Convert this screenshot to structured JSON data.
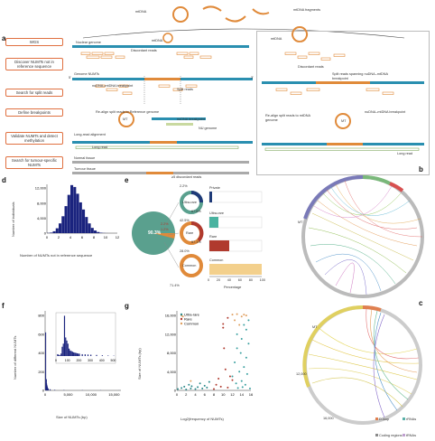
{
  "panels": {
    "a": "a",
    "b": "b",
    "c": "c",
    "d": "d",
    "e": "e",
    "f": "f",
    "g": "g"
  },
  "panel_a": {
    "top_labels": {
      "mtdna": "mtDNA",
      "mtdna_fragments": "mtDNA fragments",
      "mtdna_small": "mtDNA",
      "mtdna_right": "mtDNA"
    },
    "steps": [
      "WGS",
      "Discover NUMTs not in reference sequence",
      "Search for split reads",
      "Define breakpoints",
      "Validate NUMTs and detect methylation",
      "Search for tumour-specific NUMTs"
    ],
    "labels": {
      "nuclear_genome": "Nuclear genome",
      "discordant_reads": "Discordant reads",
      "discordant_reads_right": "Discordant reads",
      "genome_numts": "Genome NUMTs",
      "five_prime": "5'",
      "three_prime": "3'",
      "mt_nu_breakpoint": "nuDNA–mtDNA breakpoint",
      "split_reads": "Split reads",
      "realign_left": "Re-align split reads to Reference genome",
      "mt": "MT",
      "nu_breakpoint": "nuDNA breakpoint",
      "nu_genome": "NU genome",
      "split_spanning": "Split reads spanning nuDNA–mtDNA breakpoint",
      "realign_right": "Re-align split reads to mtDNA genome",
      "mt_right": "MT",
      "nu_mt_breakpoint_right": "nuDNA–mtDNA breakpoint",
      "long_read_alignment": "Long-read alignment",
      "long_read": "Long read",
      "long_read_right": "Long read",
      "normal_tissue": "Normal tissue",
      "tumour_tissue": "Tumour tissue",
      "discordant_ge3": "≥5 discordant reads"
    }
  },
  "panel_b": {
    "labels": [
      "MT"
    ]
  },
  "panel_c": {
    "mt_label": "MT",
    "legend": [
      "D-loop",
      "rRNAs",
      "Coding regions",
      "tRNAs"
    ],
    "ticks": [
      "12,000",
      "16,000"
    ],
    "colors": {
      "dloop": "#e08050",
      "rrna": "#5ab0a8",
      "coding": "#8a8a8a",
      "trna": "#c0a0d0"
    }
  },
  "panel_e": {
    "pie_total": "90.3%",
    "pie_split": [
      "2.2%",
      "1.2%"
    ],
    "rings": [
      {
        "name": "Ultra-rare",
        "top": "2.2%",
        "bottom": "67.6%"
      },
      {
        "name": "Rare",
        "top": "42.5%",
        "bottom": "57.1%"
      },
      {
        "name": "Common",
        "top": "28.0%",
        "bottom": "71.4%"
      }
    ],
    "bar_title_labels": [
      "Private",
      "Ultra-rare",
      "Rare",
      "Common"
    ],
    "bar_xlabel": "Percentage",
    "bar_ticks": [
      "0",
      "20",
      "40",
      "60",
      "80",
      "100"
    ],
    "colors": {
      "pie": "#5aa08e",
      "orange": "#e08a3a",
      "dark_blue": "#1e3a78",
      "teal": "#4ab3a0",
      "red": "#b03a2e"
    }
  },
  "chart_data": [
    {
      "id": "d",
      "type": "bar",
      "xlabel": "Number of NUMTs not in reference sequence",
      "ylabel": "Number of individuals",
      "xticks": [
        "0",
        "2",
        "4",
        "6",
        "8",
        "10",
        "12"
      ],
      "yticks": [
        "0",
        "4,000",
        "8,000",
        "12,000"
      ],
      "ylim": [
        0,
        13000
      ],
      "x": [
        0,
        0.5,
        1,
        1.5,
        2,
        2.5,
        3,
        3.5,
        4,
        4.5,
        5,
        5.5,
        6,
        6.5,
        7,
        7.5,
        8,
        8.5,
        9,
        9.5,
        10
      ],
      "values": [
        50,
        150,
        500,
        1300,
        2600,
        4500,
        7200,
        10200,
        12800,
        12300,
        10500,
        8200,
        6300,
        4300,
        2600,
        1400,
        700,
        300,
        120,
        40,
        10
      ],
      "color": "#1a237e"
    },
    {
      "id": "f",
      "type": "bar",
      "xlabel": "Size of NUMTs (bp)",
      "ylabel": "Number of different NUMTs",
      "xticks": [
        "0",
        "5,000",
        "10,000",
        "15,000"
      ],
      "yticks": [
        "0",
        "200",
        "400",
        "600",
        "800"
      ],
      "ylim": [
        0,
        850
      ],
      "x": [
        25,
        75,
        125,
        175,
        225,
        275,
        325,
        375,
        425,
        475,
        600,
        1000,
        2000,
        4000,
        8000,
        12000,
        16000
      ],
      "values": [
        620,
        40,
        80,
        120,
        75,
        60,
        50,
        40,
        30,
        22,
        18,
        12,
        6,
        4,
        3,
        2,
        1
      ],
      "inset": {
        "xticks": [
          "0",
          "100",
          "200",
          "300",
          "400",
          "500"
        ],
        "x": [
          10,
          20,
          30,
          40,
          50,
          60,
          70,
          80,
          90,
          100,
          110,
          120,
          130,
          140,
          150,
          160,
          170,
          180,
          190,
          200,
          225,
          250,
          275,
          300,
          350,
          400,
          450,
          500
        ],
        "values": [
          30,
          20,
          10,
          40,
          150,
          200,
          650,
          300,
          250,
          200,
          120,
          90,
          80,
          70,
          60,
          55,
          50,
          45,
          40,
          38,
          30,
          28,
          25,
          22,
          18,
          12,
          8,
          5
        ]
      },
      "color": "#1a237e"
    },
    {
      "id": "g",
      "type": "scatter",
      "xlabel": "Log2(frequency of NUMTs)",
      "ylabel": "Size of NUMTs (bp)",
      "xticks": [
        "0",
        "2",
        "4",
        "6",
        "8",
        "10",
        "12",
        "14",
        "16"
      ],
      "yticks": [
        "0",
        "4,000",
        "8,000",
        "12,000",
        "16,000"
      ],
      "ylim": [
        0,
        17000
      ],
      "xlim": [
        0,
        16
      ],
      "legend": [
        "Ultra-rare",
        "Rare",
        "Common"
      ],
      "series": [
        {
          "name": "Ultra-rare",
          "color": "#2e8b8b",
          "points": [
            [
              0.2,
              300
            ],
            [
              1,
              500
            ],
            [
              1.6,
              800
            ],
            [
              2,
              200
            ],
            [
              2.6,
              1200
            ],
            [
              3,
              400
            ],
            [
              3.2,
              900
            ],
            [
              4,
              300
            ],
            [
              4.5,
              700
            ],
            [
              5,
              1500
            ],
            [
              5.5,
              400
            ],
            [
              6,
              1000
            ],
            [
              6.5,
              600
            ],
            [
              7,
              1800
            ]
          ]
        },
        {
          "name": "Rare",
          "color": "#b03a2e",
          "points": [
            [
              8,
              300
            ],
            [
              8.5,
              1200
            ],
            [
              9,
              2500
            ],
            [
              9.5,
              800
            ],
            [
              10,
              13400
            ],
            [
              10,
              14200
            ],
            [
              10.2,
              9000
            ],
            [
              10.5,
              4500
            ],
            [
              11,
              600
            ],
            [
              11,
              15500
            ],
            [
              11.5,
              3000
            ],
            [
              12,
              2200
            ]
          ]
        },
        {
          "name": "Common",
          "color": "#e0a060",
          "points": [
            [
              1,
              16000
            ],
            [
              1.3,
              15800
            ],
            [
              3,
              2000
            ],
            [
              12,
              16200
            ],
            [
              12.5,
              15000
            ],
            [
              13,
              16300
            ],
            [
              13.5,
              14000
            ],
            [
              14,
              15800
            ],
            [
              14.5,
              16200
            ],
            [
              15,
              16000
            ]
          ]
        },
        {
          "name": "",
          "color": "#3aa0a0",
          "points": [
            [
              12,
              3000
            ],
            [
              12.5,
              6000
            ],
            [
              13,
              9000
            ],
            [
              13,
              12000
            ],
            [
              13.5,
              4000
            ],
            [
              13.8,
              8000
            ],
            [
              14,
              11000
            ],
            [
              14,
              2000
            ],
            [
              14.5,
              5000
            ],
            [
              14.5,
              14000
            ],
            [
              15,
              7000
            ],
            [
              15,
              13000
            ],
            [
              15.2,
              3500
            ],
            [
              15.5,
              10000
            ],
            [
              15.5,
              15000
            ],
            [
              12.8,
              1500
            ],
            [
              13.2,
              500
            ],
            [
              14.2,
              700
            ],
            [
              14.8,
              1200
            ],
            [
              15.8,
              400
            ]
          ]
        }
      ]
    }
  ]
}
